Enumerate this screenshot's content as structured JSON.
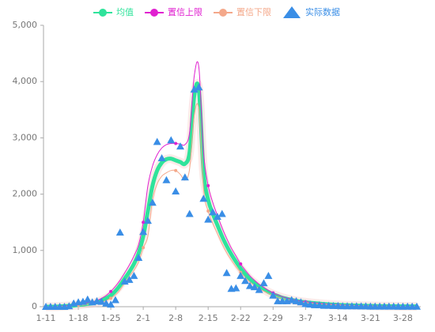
{
  "chart_data": {
    "type": "line",
    "categories": [
      "1-11",
      null,
      null,
      null,
      null,
      null,
      null,
      "1-18",
      null,
      null,
      null,
      null,
      null,
      null,
      "1-25",
      null,
      null,
      null,
      null,
      null,
      null,
      "2-1",
      null,
      null,
      null,
      null,
      null,
      null,
      "2-8",
      null,
      null,
      null,
      null,
      null,
      null,
      "2-15",
      null,
      null,
      null,
      null,
      null,
      null,
      "2-22",
      null,
      null,
      null,
      null,
      null,
      null,
      "2-29",
      null,
      null,
      null,
      null,
      null,
      null,
      "3-7",
      null,
      null,
      null,
      null,
      null,
      null,
      "3-14",
      null,
      null,
      null,
      null,
      null,
      null,
      "3-21",
      null,
      null,
      null,
      null,
      null,
      null,
      "3-28",
      null,
      null,
      null
    ],
    "ylim": [
      0,
      5000
    ],
    "yticks": [
      0,
      {
        "value": 1000,
        "label": "1,000"
      },
      {
        "value": 2000,
        "label": "2,000"
      },
      {
        "value": 3000,
        "label": "3,000"
      },
      {
        "value": 4000,
        "label": "4,000"
      },
      {
        "value": 5000,
        "label": "5,000"
      }
    ],
    "grid": false,
    "series": [
      {
        "name": "均值",
        "color": "#2fe39b",
        "type": "line",
        "width": 5,
        "values": [
          0,
          0,
          0,
          5,
          10,
          15,
          20,
          30,
          40,
          50,
          60,
          80,
          110,
          150,
          200,
          280,
          380,
          500,
          620,
          760,
          950,
          1250,
          1700,
          2150,
          2420,
          2560,
          2620,
          2630,
          2600,
          2570,
          2540,
          2750,
          3750,
          3850,
          2400,
          1900,
          1650,
          1450,
          1250,
          1080,
          930,
          800,
          680,
          580,
          490,
          420,
          360,
          310,
          260,
          220,
          190,
          160,
          140,
          120,
          105,
          90,
          80,
          70,
          62,
          55,
          48,
          42,
          37,
          33,
          29,
          26,
          23,
          20,
          18,
          16,
          14,
          12,
          11,
          10,
          9,
          8,
          7,
          6,
          6,
          5,
          5
        ]
      },
      {
        "name": "置信上限",
        "color": "#e020d0",
        "type": "line",
        "width": 1,
        "values": [
          0,
          0,
          0,
          8,
          15,
          22,
          30,
          42,
          55,
          70,
          85,
          110,
          150,
          200,
          270,
          360,
          470,
          600,
          740,
          900,
          1100,
          1500,
          2150,
          2500,
          2700,
          2820,
          2880,
          2900,
          2900,
          2890,
          2880,
          3100,
          4100,
          4250,
          2750,
          2150,
          1850,
          1620,
          1400,
          1210,
          1040,
          900,
          760,
          650,
          550,
          470,
          400,
          345,
          290,
          245,
          210,
          180,
          155,
          135,
          118,
          100,
          90,
          78,
          69,
          61,
          54,
          47,
          41,
          37,
          33,
          29,
          26,
          22,
          20,
          18,
          16,
          14,
          12,
          11,
          10,
          9,
          8,
          7,
          7,
          6,
          6
        ]
      },
      {
        "name": "置信下限",
        "color": "#f4a88a",
        "type": "line",
        "width": 1,
        "values": [
          0,
          0,
          0,
          3,
          6,
          10,
          14,
          22,
          30,
          38,
          45,
          60,
          80,
          110,
          150,
          210,
          300,
          420,
          540,
          650,
          800,
          1050,
          1250,
          1900,
          2180,
          2320,
          2380,
          2420,
          2420,
          2350,
          2250,
          2450,
          3400,
          3500,
          2100,
          1700,
          1480,
          1300,
          1120,
          960,
          830,
          710,
          610,
          520,
          440,
          375,
          320,
          275,
          235,
          195,
          170,
          145,
          125,
          108,
          94,
          81,
          72,
          63,
          56,
          49,
          43,
          38,
          33,
          30,
          26,
          23,
          21,
          18,
          16,
          14,
          12,
          11,
          10,
          9,
          8,
          7,
          6,
          5,
          5,
          4,
          4
        ]
      },
      {
        "name": "实际数据",
        "color": "#3a8ee6",
        "type": "scatter",
        "values": [
          0,
          0,
          0,
          0,
          0,
          10,
          60,
          80,
          90,
          130,
          80,
          100,
          90,
          60,
          40,
          120,
          1320,
          450,
          480,
          550,
          870,
          1330,
          1530,
          1850,
          2930,
          2640,
          2250,
          2960,
          2050,
          2850,
          2300,
          1650,
          3860,
          3900,
          1920,
          1550,
          1680,
          1600,
          1650,
          600,
          320,
          330,
          550,
          460,
          370,
          350,
          300,
          420,
          550,
          200,
          100,
          100,
          100,
          120,
          100,
          80,
          50,
          40,
          30,
          30,
          20,
          20,
          15,
          15,
          10,
          10,
          10,
          10,
          8,
          8,
          5,
          5,
          5,
          5,
          5,
          5,
          3,
          3,
          3,
          3,
          3
        ]
      }
    ]
  }
}
